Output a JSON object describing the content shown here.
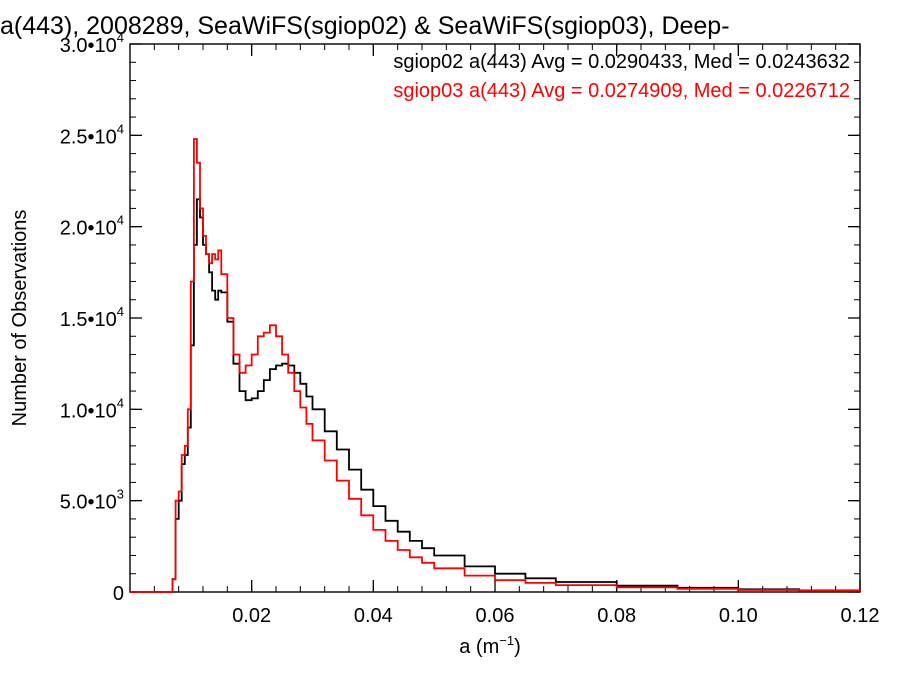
{
  "chart_data": {
    "type": "line",
    "title": "a(443), 2008289, SeaWiFS(sgiop02) & SeaWiFS(sgiop03), Deep-",
    "xlabel": "a (m",
    "xlabel_sup": "−1",
    "xlabel_suffix": ")",
    "ylabel": "Number of Observations",
    "xlim": [
      0.0,
      0.12
    ],
    "ylim": [
      0,
      30000
    ],
    "grid": false,
    "legend_position": "top-right",
    "x_ticks": [
      {
        "value": 0.02,
        "label": "0.02"
      },
      {
        "value": 0.04,
        "label": "0.04"
      },
      {
        "value": 0.06,
        "label": "0.06"
      },
      {
        "value": 0.08,
        "label": "0.08"
      },
      {
        "value": 0.1,
        "label": "0.10"
      },
      {
        "value": 0.12,
        "label": "0.12"
      }
    ],
    "y_ticks": [
      {
        "value": 0,
        "mant": "0",
        "exp": ""
      },
      {
        "value": 5000,
        "mant": "5.0•10",
        "exp": "3"
      },
      {
        "value": 10000,
        "mant": "1.0•10",
        "exp": "4"
      },
      {
        "value": 15000,
        "mant": "1.5•10",
        "exp": "4"
      },
      {
        "value": 20000,
        "mant": "2.0•10",
        "exp": "4"
      },
      {
        "value": 25000,
        "mant": "2.5•10",
        "exp": "4"
      },
      {
        "value": 30000,
        "mant": "3.0•10",
        "exp": "4"
      }
    ],
    "series": [
      {
        "name": "sgiop02 a(443) Avg = 0.0290433, Med = 0.0243632",
        "color": "#000000",
        "x": [
          0.0,
          0.0065,
          0.007,
          0.0075,
          0.008,
          0.0085,
          0.009,
          0.0095,
          0.01,
          0.0105,
          0.011,
          0.0115,
          0.012,
          0.0125,
          0.013,
          0.0135,
          0.014,
          0.0145,
          0.015,
          0.016,
          0.017,
          0.018,
          0.019,
          0.02,
          0.021,
          0.022,
          0.023,
          0.024,
          0.025,
          0.026,
          0.027,
          0.028,
          0.029,
          0.03,
          0.032,
          0.034,
          0.036,
          0.038,
          0.04,
          0.042,
          0.044,
          0.046,
          0.048,
          0.05,
          0.055,
          0.06,
          0.065,
          0.07,
          0.08,
          0.09,
          0.1,
          0.11,
          0.12
        ],
        "y": [
          0,
          0,
          700,
          4000,
          5000,
          7000,
          7500,
          9000,
          13500,
          19000,
          21500,
          20500,
          19000,
          18500,
          17500,
          16500,
          16000,
          16500,
          16400,
          14800,
          12500,
          11000,
          10500,
          10600,
          11000,
          11600,
          12200,
          12400,
          12500,
          12400,
          12000,
          11400,
          10700,
          10000,
          8800,
          7800,
          6700,
          5600,
          4700,
          3900,
          3300,
          2800,
          2400,
          2000,
          1400,
          1000,
          750,
          550,
          350,
          230,
          150,
          90,
          60
        ]
      },
      {
        "name": "sgiop03 a(443) Avg = 0.0274909, Med = 0.0226712",
        "color": "#ff0000",
        "x": [
          0.0,
          0.0065,
          0.007,
          0.0075,
          0.008,
          0.0085,
          0.009,
          0.0095,
          0.01,
          0.0105,
          0.011,
          0.0115,
          0.012,
          0.0125,
          0.013,
          0.0135,
          0.014,
          0.0145,
          0.015,
          0.016,
          0.017,
          0.018,
          0.019,
          0.02,
          0.021,
          0.022,
          0.023,
          0.024,
          0.025,
          0.026,
          0.027,
          0.028,
          0.029,
          0.03,
          0.032,
          0.034,
          0.036,
          0.038,
          0.04,
          0.042,
          0.044,
          0.046,
          0.048,
          0.05,
          0.055,
          0.06,
          0.065,
          0.07,
          0.08,
          0.09,
          0.1,
          0.11,
          0.12
        ],
        "y": [
          0,
          0,
          700,
          5000,
          5500,
          7500,
          8000,
          10000,
          17000,
          24800,
          23500,
          21000,
          19500,
          18500,
          18000,
          18500,
          18200,
          18700,
          17400,
          15000,
          13000,
          12000,
          12400,
          13000,
          14000,
          14200,
          14600,
          14000,
          13000,
          12000,
          11000,
          10100,
          9200,
          8300,
          7200,
          6100,
          5100,
          4200,
          3400,
          2800,
          2300,
          1900,
          1600,
          1300,
          900,
          650,
          500,
          380,
          260,
          170,
          110,
          70,
          40
        ]
      }
    ]
  }
}
